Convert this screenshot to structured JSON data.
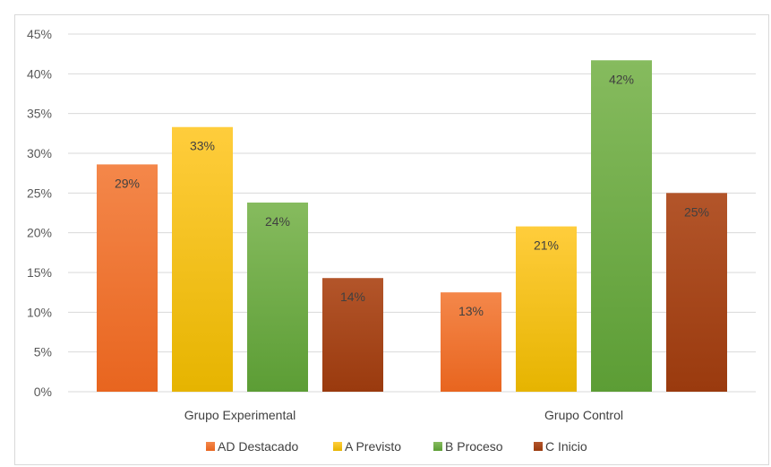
{
  "chart_data": {
    "type": "bar",
    "categories": [
      "Grupo Experimental",
      "Grupo Control"
    ],
    "series": [
      {
        "name": "AD Destacado",
        "values": [
          29,
          13
        ],
        "labels": [
          "29%",
          "13%"
        ],
        "plotted": [
          28.6,
          12.5
        ]
      },
      {
        "name": "A Previsto",
        "values": [
          33,
          21
        ],
        "labels": [
          "33%",
          "21%"
        ],
        "plotted": [
          33.3,
          20.8
        ]
      },
      {
        "name": "B Proceso",
        "values": [
          24,
          42
        ],
        "labels": [
          "24%",
          "42%"
        ],
        "plotted": [
          23.8,
          41.7
        ]
      },
      {
        "name": "C Inicio",
        "values": [
          14,
          25
        ],
        "labels": [
          "14%",
          "25%"
        ],
        "plotted": [
          14.3,
          25.0
        ]
      }
    ],
    "ylim": [
      0,
      45
    ],
    "yticks": [
      "0%",
      "5%",
      "10%",
      "15%",
      "20%",
      "25%",
      "30%",
      "35%",
      "40%",
      "45%"
    ],
    "grid": true,
    "legend_position": "bottom",
    "colors": {
      "AD Destacado": [
        "#f4874a",
        "#e8651f"
      ],
      "A Previsto": [
        "#ffcd3c",
        "#e6b400"
      ],
      "B Proceso": [
        "#86bb5e",
        "#5c9d35"
      ],
      "C Inicio": [
        "#b3552a",
        "#9a3a0e"
      ]
    },
    "gridline_color": "#d9d9d9"
  }
}
